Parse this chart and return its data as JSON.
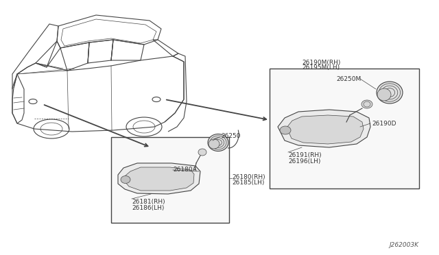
{
  "bg_color": "#ffffff",
  "diagram_code": "J262003K",
  "labels": {
    "box1_title1": "26190M(RH)",
    "box1_title2": "26195M(LH)",
    "label_26250M": "26250M",
    "label_26190D": "26190D",
    "label_26191": "26191(RH)",
    "label_26196": "26196(LH)",
    "label_26250": "26250",
    "label_26180A": "26180A",
    "label_26181": "26181(RH)",
    "label_26186": "26186(LH)",
    "label_26180RH": "26180(RH)",
    "label_26185LH": "26185(LH)"
  },
  "line_color": "#444444",
  "box_bg": "#ffffff",
  "text_color": "#333333",
  "font_size": 6.5,
  "fig_w": 6.4,
  "fig_h": 3.72,
  "dpi": 100
}
